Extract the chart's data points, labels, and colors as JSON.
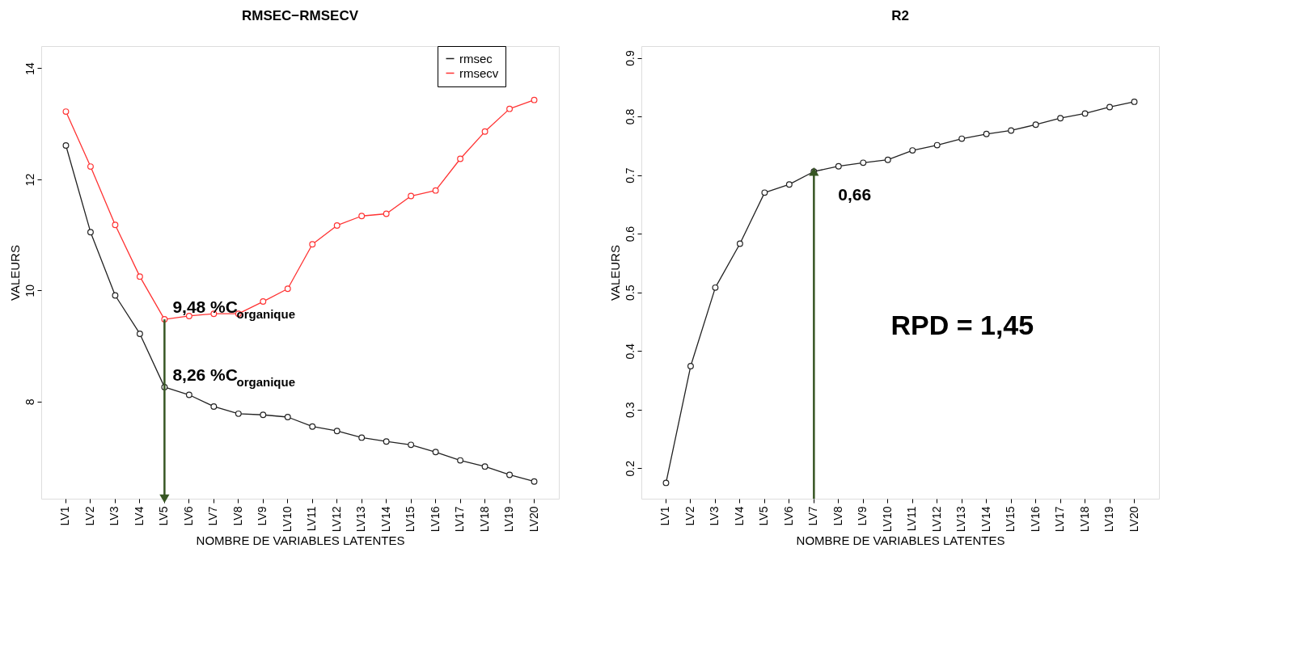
{
  "chart_data": [
    {
      "type": "line",
      "title": "RMSEC−RMSECV",
      "xlabel": "NOMBRE DE VARIABLES LATENTES",
      "ylabel": "VALEURS",
      "categories": [
        "LV1",
        "LV2",
        "LV3",
        "LV4",
        "LV5",
        "LV6",
        "LV7",
        "LV8",
        "LV9",
        "LV10",
        "LV11",
        "LV12",
        "LV13",
        "LV14",
        "LV15",
        "LV16",
        "LV17",
        "LV18",
        "LV19",
        "LV20"
      ],
      "series": [
        {
          "name": "rmsec",
          "color": "#222222",
          "values": [
            12.61,
            11.05,
            9.91,
            9.22,
            8.26,
            8.12,
            7.91,
            7.78,
            7.76,
            7.72,
            7.55,
            7.47,
            7.35,
            7.28,
            7.22,
            7.09,
            6.94,
            6.83,
            6.68,
            6.56
          ]
        },
        {
          "name": "rmsecv",
          "color": "#ff3333",
          "values": [
            13.22,
            12.23,
            11.18,
            10.25,
            9.48,
            9.54,
            9.58,
            9.58,
            9.8,
            10.03,
            10.83,
            11.17,
            11.34,
            11.38,
            11.7,
            11.8,
            12.37,
            12.86,
            13.27,
            13.43
          ]
        }
      ],
      "ylim": [
        6.25,
        14.4
      ],
      "yticks": [
        8,
        10,
        12,
        14
      ],
      "grid": false,
      "legend": "top right",
      "marker": "circle",
      "line_style": "solid",
      "annotations": [
        {
          "text": "9,48 %C$_{organique}$",
          "x": "LV5",
          "y": 9.48
        },
        {
          "text": "8,26 %C$_{organique}$",
          "x": "LV5",
          "y": 8.26
        }
      ]
    },
    {
      "type": "line",
      "title": "R2",
      "xlabel": "NOMBRE DE VARIABLES LATENTES",
      "ylabel": "VALEURS",
      "categories": [
        "LV1",
        "LV2",
        "LV3",
        "LV4",
        "LV5",
        "LV6",
        "LV7",
        "LV8",
        "LV9",
        "LV10",
        "LV11",
        "LV12",
        "LV13",
        "LV14",
        "LV15",
        "LV16",
        "LV17",
        "LV18",
        "LV19",
        "LV20"
      ],
      "series": [
        {
          "color": "#222222",
          "values": [
            0.175,
            0.374,
            0.508,
            0.583,
            0.67,
            0.684,
            0.706,
            0.715,
            0.721,
            0.726,
            0.742,
            0.751,
            0.762,
            0.77,
            0.776,
            0.786,
            0.797,
            0.805,
            0.816,
            0.825
          ]
        }
      ],
      "ylim": [
        0.148,
        0.92
      ],
      "yticks": [
        0.2,
        0.3,
        0.4,
        0.5,
        0.6,
        0.7,
        0.8,
        0.9
      ],
      "grid": false,
      "legend": false,
      "marker": "circle",
      "line_style": "solid",
      "ref_lines": [
        {
          "axis": "x",
          "value": "LV7",
          "label": "0,66",
          "color": "#375623"
        }
      ],
      "annotations": [
        "RPD = 1,45"
      ]
    }
  ]
}
